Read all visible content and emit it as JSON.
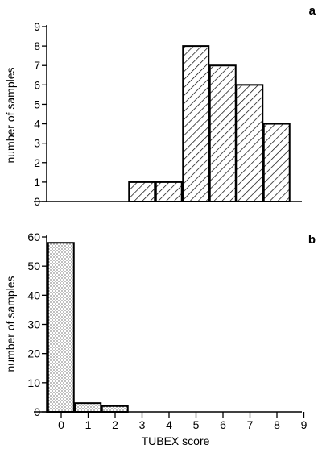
{
  "chart_data": [
    {
      "type": "bar",
      "panel_label": "a",
      "categories": [
        "0",
        "1",
        "2",
        "3",
        "4",
        "5",
        "6",
        "7",
        "8",
        "9"
      ],
      "values": [
        0,
        0,
        0,
        1,
        1,
        8,
        7,
        6,
        4,
        0
      ],
      "ylabel": "number of samples",
      "xlabel": "",
      "ylim": [
        0,
        9
      ],
      "yticks": [
        "0",
        "1",
        "2",
        "3",
        "4",
        "5",
        "6",
        "7",
        "8",
        "9"
      ],
      "fill": "diagonal-hatch",
      "grid": false
    },
    {
      "type": "bar",
      "panel_label": "b",
      "categories": [
        "0",
        "1",
        "2",
        "3",
        "4",
        "5",
        "6",
        "7",
        "8",
        "9"
      ],
      "values": [
        58,
        3,
        2,
        0,
        0,
        0,
        0,
        0,
        0,
        0
      ],
      "ylabel": "number of samples",
      "xlabel": "TUBEX score",
      "ylim": [
        0,
        60
      ],
      "yticks": [
        "0",
        "10",
        "20",
        "30",
        "40",
        "50",
        "60"
      ],
      "xticks": [
        "0",
        "1",
        "2",
        "3",
        "4",
        "5",
        "6",
        "7",
        "8",
        "9"
      ],
      "fill": "dotted",
      "grid": false
    }
  ]
}
